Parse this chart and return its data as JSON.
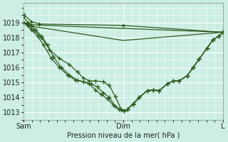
{
  "xlabel": "Pression niveau de la mer( hPa )",
  "bg_color": "#cceee4",
  "grid_color": "#ffffff",
  "line_color": "#2d5a1b",
  "ylim": [
    1012.5,
    1020.3
  ],
  "yticks": [
    1013,
    1014,
    1015,
    1016,
    1017,
    1018,
    1019
  ],
  "xtick_labels": [
    "Sam",
    "Dim",
    "L"
  ],
  "xtick_positions": [
    0.0,
    0.5,
    1.0
  ],
  "lines": [
    {
      "x": [
        0.0,
        0.04,
        0.08,
        0.5,
        1.0
      ],
      "y": [
        1019.55,
        1019.05,
        1018.9,
        1018.8,
        1018.35
      ],
      "markers": true
    },
    {
      "x": [
        0.0,
        0.04,
        0.5,
        1.0
      ],
      "y": [
        1019.0,
        1018.85,
        1018.6,
        1018.35
      ],
      "markers": false
    },
    {
      "x": [
        0.0,
        0.04,
        0.5,
        1.0
      ],
      "y": [
        1019.0,
        1018.75,
        1017.8,
        1018.35
      ],
      "markers": false
    },
    {
      "x": [
        0.0,
        0.02,
        0.05,
        0.09,
        0.13,
        0.18,
        0.23,
        0.27,
        0.3,
        0.33,
        0.36,
        0.4,
        0.43,
        0.46,
        0.49,
        0.505,
        0.52,
        0.55,
        0.58,
        0.62,
        0.65,
        0.68,
        0.72,
        0.75,
        0.78,
        0.82,
        0.85,
        0.88,
        0.92,
        0.95,
        0.98,
        1.0
      ],
      "y": [
        1019.0,
        1018.85,
        1018.5,
        1018.0,
        1017.2,
        1016.6,
        1016.2,
        1015.7,
        1015.3,
        1015.1,
        1015.1,
        1015.05,
        1014.8,
        1014.05,
        1013.2,
        1013.1,
        1013.2,
        1013.6,
        1014.0,
        1014.45,
        1014.5,
        1014.45,
        1014.9,
        1015.1,
        1015.1,
        1015.45,
        1016.0,
        1016.55,
        1017.3,
        1017.85,
        1018.1,
        1018.35
      ],
      "markers": true
    },
    {
      "x": [
        0.0,
        0.02,
        0.04,
        0.07,
        0.1,
        0.14,
        0.18,
        0.22,
        0.26,
        0.3,
        0.34,
        0.37,
        0.4,
        0.43,
        0.46,
        0.49,
        0.505,
        0.52,
        0.55,
        0.58,
        0.62,
        0.65,
        0.68,
        0.72,
        0.75,
        0.78,
        0.82,
        0.85,
        0.88,
        0.92,
        0.95,
        0.98,
        1.0
      ],
      "y": [
        1019.0,
        1018.8,
        1018.5,
        1018.1,
        1017.5,
        1016.6,
        1016.0,
        1015.5,
        1015.15,
        1015.05,
        1014.9,
        1014.7,
        1014.3,
        1014.0,
        1013.4,
        1013.15,
        1013.1,
        1013.2,
        1013.55,
        1014.0,
        1014.45,
        1014.5,
        1014.45,
        1014.9,
        1015.1,
        1015.1,
        1015.45,
        1016.0,
        1016.55,
        1017.3,
        1017.85,
        1018.1,
        1018.35
      ],
      "markers": true
    },
    {
      "x": [
        0.0,
        0.02,
        0.04,
        0.06,
        0.09,
        0.12,
        0.15,
        0.19,
        0.23,
        0.27,
        0.3,
        0.33,
        0.36,
        0.39,
        0.42,
        0.45,
        0.48,
        0.505,
        0.52,
        0.55,
        0.58,
        0.62,
        0.65,
        0.68,
        0.72,
        0.75,
        0.78,
        0.82,
        0.85,
        0.88,
        0.92,
        0.95,
        0.98,
        1.0
      ],
      "y": [
        1019.4,
        1019.0,
        1018.8,
        1018.5,
        1018.1,
        1017.5,
        1016.7,
        1016.0,
        1015.5,
        1015.15,
        1015.05,
        1014.9,
        1014.5,
        1014.2,
        1013.9,
        1013.5,
        1013.2,
        1013.1,
        1013.2,
        1013.55,
        1014.0,
        1014.45,
        1014.5,
        1014.45,
        1014.9,
        1015.1,
        1015.1,
        1015.45,
        1016.0,
        1016.55,
        1017.3,
        1017.85,
        1018.1,
        1018.35
      ],
      "markers": true
    }
  ]
}
